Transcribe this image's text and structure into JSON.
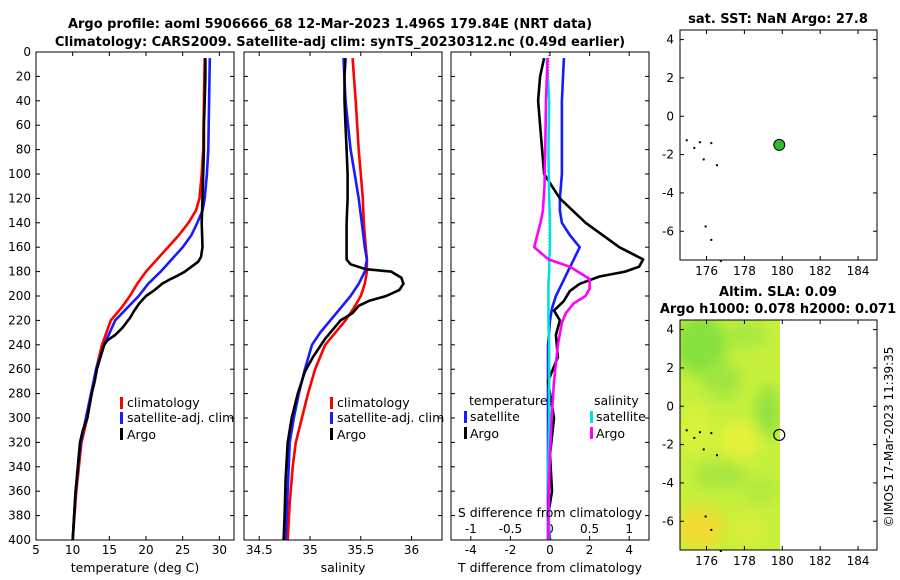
{
  "figure": {
    "title_line1": "Argo profile: aoml 5906666_68 12-Mar-2023 1.496S 179.84E (NRT data)",
    "title_line2": "Climatology: CARS2009. Satellite-adj clim: synTS_20230312.nc (0.49d earlier)",
    "side_label": "©IMOS 17-Mar-2023 11:39:35"
  },
  "colors": {
    "climatology": "#ff0000",
    "satellite": "#1a1aff",
    "argo": "#000000",
    "sal_satellite": "#00e0e0",
    "sal_argo": "#ff00ff"
  },
  "chart_data": [
    {
      "type": "line",
      "panel": "temperature",
      "xlabel": "temperature (deg C)",
      "ylabel": "",
      "xlim": [
        5,
        32
      ],
      "ylim": [
        0,
        400
      ],
      "xticks": [
        5,
        10,
        15,
        20,
        25,
        30
      ],
      "yticks": [
        0,
        20,
        40,
        60,
        80,
        100,
        120,
        140,
        160,
        180,
        200,
        220,
        240,
        260,
        280,
        300,
        320,
        340,
        360,
        380,
        400
      ],
      "legend": [
        "climatology",
        "satellite-adj. clim",
        "Argo"
      ],
      "series": [
        {
          "name": "climatology",
          "x": [
            28.0,
            27.9,
            27.8,
            27.6,
            27.3,
            26.8,
            25.8,
            24.5,
            23.0,
            21.5,
            20.0,
            18.8,
            17.8,
            16.6,
            15.2,
            14.0,
            13.2,
            12.6,
            12.0,
            11.2,
            10.5,
            10.0
          ],
          "y": [
            5,
            40,
            80,
            100,
            120,
            130,
            140,
            150,
            160,
            170,
            180,
            190,
            200,
            210,
            220,
            240,
            260,
            280,
            300,
            320,
            360,
            400
          ]
        },
        {
          "name": "satellite-adj. clim",
          "x": [
            28.7,
            28.6,
            28.5,
            28.3,
            28.0,
            27.7,
            27.0,
            26.2,
            25.0,
            23.5,
            22.0,
            20.3,
            19.0,
            17.4,
            15.8,
            14.3,
            13.2,
            12.5,
            11.8,
            11.1,
            10.4,
            10.0
          ],
          "y": [
            5,
            40,
            80,
            100,
            120,
            130,
            140,
            150,
            160,
            170,
            180,
            190,
            200,
            210,
            220,
            240,
            260,
            280,
            300,
            320,
            360,
            400
          ]
        },
        {
          "name": "Argo",
          "x": [
            28.1,
            28.1,
            28.0,
            27.9,
            27.9,
            27.8,
            27.7,
            27.6,
            27.7,
            27.5,
            27.1,
            26.2,
            25.3,
            24.4,
            23.4,
            22.2,
            21.2,
            20.0,
            19.1,
            18.4,
            17.8,
            16.8,
            15.8,
            14.8,
            14.3,
            13.8,
            13.3,
            13.0,
            12.6,
            12.3,
            12.0,
            11.4,
            11.0,
            10.7,
            10.4,
            10.2,
            10.0
          ],
          "y": [
            5,
            20,
            40,
            60,
            80,
            100,
            120,
            140,
            160,
            168,
            172,
            176,
            180,
            183,
            186,
            190,
            195,
            200,
            206,
            212,
            218,
            226,
            232,
            236,
            240,
            250,
            260,
            270,
            280,
            290,
            300,
            310,
            320,
            340,
            360,
            380,
            400
          ]
        }
      ]
    },
    {
      "type": "line",
      "panel": "salinity",
      "xlabel": "salinity",
      "xlim": [
        34.35,
        36.3
      ],
      "ylim": [
        0,
        400
      ],
      "xticks": [
        34.5,
        35,
        35.5,
        36
      ],
      "xticklabels": [
        "34.5",
        "35",
        "35.5",
        "36"
      ],
      "legend": [
        "climatology",
        "satellite-adj. clim",
        "Argo"
      ],
      "series": [
        {
          "name": "climatology",
          "x": [
            35.42,
            35.45,
            35.48,
            35.5,
            35.52,
            35.53,
            35.55,
            35.56,
            35.56,
            35.54,
            35.5,
            35.43,
            35.35,
            35.25,
            35.15,
            35.05,
            34.98,
            34.92,
            34.86,
            34.83,
            34.8,
            34.78
          ],
          "y": [
            5,
            40,
            80,
            100,
            120,
            140,
            160,
            170,
            180,
            190,
            200,
            210,
            220,
            230,
            240,
            260,
            280,
            300,
            320,
            340,
            370,
            400
          ]
        },
        {
          "name": "satellite-adj. clim",
          "x": [
            35.33,
            35.35,
            35.4,
            35.44,
            35.48,
            35.51,
            35.54,
            35.56,
            35.54,
            35.48,
            35.4,
            35.3,
            35.2,
            35.1,
            35.02,
            34.95,
            34.89,
            34.84,
            34.8,
            34.78,
            34.76
          ],
          "y": [
            5,
            40,
            80,
            100,
            120,
            140,
            160,
            170,
            180,
            190,
            200,
            210,
            220,
            230,
            240,
            260,
            280,
            300,
            320,
            360,
            400
          ]
        },
        {
          "name": "Argo",
          "x": [
            35.35,
            35.34,
            35.34,
            35.35,
            35.36,
            35.37,
            35.37,
            35.36,
            35.36,
            35.36,
            35.4,
            35.55,
            35.8,
            35.9,
            35.92,
            35.88,
            35.75,
            35.58,
            35.48,
            35.42,
            35.3,
            35.15,
            35.03,
            34.95,
            34.88,
            34.82,
            34.78,
            34.76,
            34.75,
            34.74
          ],
          "y": [
            5,
            20,
            40,
            60,
            80,
            100,
            120,
            140,
            160,
            170,
            174,
            178,
            180,
            185,
            190,
            195,
            200,
            204,
            208,
            214,
            220,
            235,
            250,
            262,
            280,
            300,
            320,
            350,
            380,
            400
          ]
        }
      ]
    },
    {
      "type": "line",
      "panel": "differences",
      "xlabel": "T difference from climatology",
      "xlabel_top": "S difference from climatology",
      "xlim": [
        -5,
        5
      ],
      "ylim": [
        0,
        400
      ],
      "xticks": [
        -4,
        -2,
        0,
        2,
        4
      ],
      "xticks_top": [
        -1,
        -0.5,
        0,
        0.5,
        1
      ],
      "legend_headers": [
        "temperature",
        "salinity"
      ],
      "legend": [
        "satellite",
        "Argo",
        "satellite",
        "Argo"
      ],
      "series": [
        {
          "name": "T satellite",
          "x": [
            0.7,
            0.6,
            0.6,
            0.6,
            0.5,
            0.5,
            0.6,
            1.0,
            1.5,
            1.2,
            0.9,
            0.6,
            0.3,
            0.1,
            0.0,
            -0.1,
            -0.1,
            -0.1,
            -0.1,
            -0.1,
            -0.1,
            -0.1
          ],
          "y": [
            5,
            40,
            80,
            100,
            120,
            130,
            140,
            150,
            160,
            170,
            180,
            190,
            200,
            210,
            220,
            240,
            260,
            280,
            300,
            320,
            360,
            400
          ]
        },
        {
          "name": "T Argo",
          "x": [
            -0.3,
            -0.5,
            -0.6,
            -0.5,
            -0.4,
            -0.3,
            0.5,
            1.8,
            3.5,
            4.7,
            4.5,
            3.8,
            2.5,
            1.5,
            1.0,
            0.7,
            0.2,
            0.5,
            0.3,
            0.4,
            -0.1,
            0.2,
            0.0,
            0.1,
            -0.1,
            0.0
          ],
          "y": [
            5,
            20,
            40,
            60,
            80,
            100,
            120,
            140,
            160,
            170,
            176,
            180,
            184,
            190,
            196,
            204,
            212,
            220,
            232,
            250,
            270,
            300,
            330,
            360,
            380,
            400
          ]
        },
        {
          "name": "S satellite",
          "x": [
            -0.04,
            -0.01,
            -0.02,
            -0.01,
            0.0,
            0.0,
            -0.01,
            -0.01,
            -0.02,
            -0.02,
            -0.02,
            -0.01,
            -0.01,
            -0.01,
            -0.02,
            -0.01
          ],
          "y": [
            5,
            40,
            80,
            120,
            140,
            160,
            170,
            180,
            190,
            200,
            220,
            240,
            260,
            300,
            340,
            400
          ]
        },
        {
          "name": "S Argo",
          "x": [
            -0.03,
            -0.05,
            -0.06,
            -0.07,
            -0.09,
            -0.12,
            -0.16,
            -0.2,
            -0.02,
            0.25,
            0.35,
            0.5,
            0.5,
            0.45,
            0.3,
            0.2,
            0.15,
            0.1,
            0.05,
            0.02,
            0.0,
            -0.01,
            -0.02,
            -0.02
          ],
          "y": [
            5,
            40,
            80,
            110,
            130,
            140,
            150,
            160,
            170,
            176,
            180,
            186,
            194,
            200,
            206,
            214,
            222,
            240,
            270,
            300,
            330,
            350,
            380,
            400
          ]
        }
      ]
    },
    {
      "type": "scatter",
      "panel": "sat_sst_map",
      "title": "sat. SST: NaN Argo: 27.8",
      "xlim": [
        174.6,
        185
      ],
      "ylim": [
        -7.5,
        4.5
      ],
      "xticks": [
        176,
        178,
        180,
        182,
        184
      ],
      "yticks": [
        4,
        2,
        0,
        -2,
        -4,
        -6
      ],
      "float_position": [
        179.84,
        -1.496
      ],
      "coast_points": [
        [
          174.9,
          -1.2
        ],
        [
          175.3,
          -1.6
        ],
        [
          175.6,
          -1.3
        ],
        [
          176.2,
          -1.35
        ],
        [
          175.8,
          -2.2
        ],
        [
          176.5,
          -2.5
        ],
        [
          175.9,
          -5.7
        ],
        [
          176.2,
          -6.4
        ],
        [
          176.7,
          -7.5
        ]
      ]
    },
    {
      "type": "heatmap",
      "panel": "altimetry_map",
      "title_line1": "Altim. SLA: 0.09",
      "title_line2": "Argo h1000: 0.078 h2000: 0.071",
      "xlim": [
        174.6,
        185
      ],
      "ylim": [
        -7.5,
        4.5
      ],
      "xticks": [
        176,
        178,
        180,
        182,
        184
      ],
      "yticks": [
        4,
        2,
        0,
        -2,
        -4,
        -6
      ],
      "data_extent": [
        174.6,
        180.0,
        -7.5,
        4.5
      ],
      "float_position": [
        179.84,
        -1.496
      ]
    }
  ]
}
